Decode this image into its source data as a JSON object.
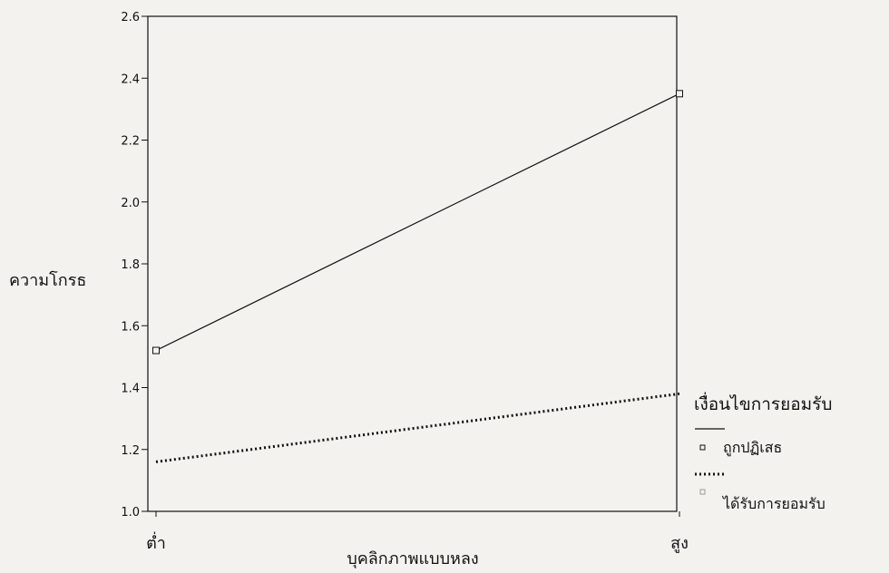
{
  "chart_data": {
    "type": "line",
    "title": "",
    "xlabel": "บุคลิกภาพแบบหลง",
    "ylabel": "ความโกรธ",
    "categories": [
      "ต่ำ",
      "สูง"
    ],
    "ylim": [
      1.0,
      2.6
    ],
    "yticks": [
      "1.0",
      "1.2",
      "1.4",
      "1.6",
      "1.8",
      "2.0",
      "2.2",
      "2.4",
      "2.6"
    ],
    "grid": false,
    "legend": {
      "title": "เงื่อนไขการยอมรับ",
      "placement": "right"
    },
    "series": [
      {
        "name": "ถูกปฏิเสธ",
        "values": [
          1.52,
          2.35
        ],
        "line_style": "solid",
        "marker": "square",
        "color": "#111111"
      },
      {
        "name": "ได้รับการยอมรับ",
        "values": [
          1.16,
          1.38
        ],
        "line_style": "dotted",
        "marker": "square-faint",
        "color": "#111111"
      }
    ]
  }
}
